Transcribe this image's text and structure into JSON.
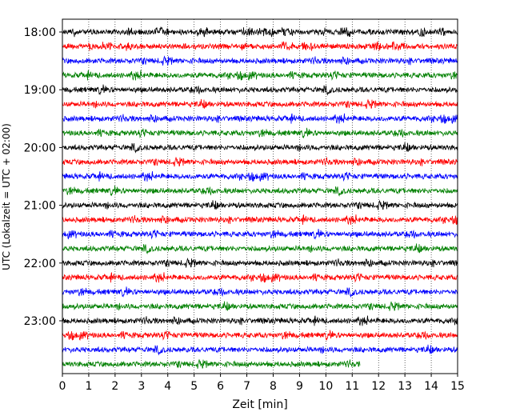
{
  "chart_data": {
    "type": "line",
    "title": "",
    "xlabel": "Zeit  [min]",
    "ylabel": "UTC (Lokalzeit = UTC + 02:00)",
    "xlim": [
      0,
      15
    ],
    "x_ticks": [
      "0",
      "1",
      "2",
      "3",
      "4",
      "5",
      "6",
      "7",
      "8",
      "9",
      "10",
      "11",
      "12",
      "13",
      "14",
      "15"
    ],
    "y_ticks": [
      "18:00",
      "19:00",
      "20:00",
      "21:00",
      "22:00",
      "23:00"
    ],
    "grid": "vertical-dotted",
    "colors": [
      "#000000",
      "#ff0000",
      "#0000ff",
      "#008000"
    ],
    "series": [
      {
        "start": "18:00",
        "end_min": 15,
        "color": "#000000"
      },
      {
        "start": "18:15",
        "end_min": 15,
        "color": "#ff0000"
      },
      {
        "start": "18:30",
        "end_min": 15,
        "color": "#0000ff"
      },
      {
        "start": "18:45",
        "end_min": 15,
        "color": "#008000"
      },
      {
        "start": "19:00",
        "end_min": 15,
        "color": "#000000"
      },
      {
        "start": "19:15",
        "end_min": 15,
        "color": "#ff0000"
      },
      {
        "start": "19:30",
        "end_min": 15,
        "color": "#0000ff"
      },
      {
        "start": "19:45",
        "end_min": 15,
        "color": "#008000"
      },
      {
        "start": "20:00",
        "end_min": 15,
        "color": "#000000"
      },
      {
        "start": "20:15",
        "end_min": 15,
        "color": "#ff0000"
      },
      {
        "start": "20:30",
        "end_min": 15,
        "color": "#0000ff"
      },
      {
        "start": "20:45",
        "end_min": 15,
        "color": "#008000"
      },
      {
        "start": "21:00",
        "end_min": 15,
        "color": "#000000"
      },
      {
        "start": "21:15",
        "end_min": 15,
        "color": "#ff0000"
      },
      {
        "start": "21:30",
        "end_min": 15,
        "color": "#0000ff"
      },
      {
        "start": "21:45",
        "end_min": 15,
        "color": "#008000"
      },
      {
        "start": "22:00",
        "end_min": 15,
        "color": "#000000"
      },
      {
        "start": "22:15",
        "end_min": 15,
        "color": "#ff0000"
      },
      {
        "start": "22:30",
        "end_min": 15,
        "color": "#0000ff"
      },
      {
        "start": "22:45",
        "end_min": 15,
        "color": "#008000"
      },
      {
        "start": "23:00",
        "end_min": 15,
        "color": "#000000"
      },
      {
        "start": "23:15",
        "end_min": 15,
        "color": "#ff0000"
      },
      {
        "start": "23:30",
        "end_min": 15,
        "color": "#0000ff"
      },
      {
        "start": "23:45",
        "end_min": 11.3,
        "color": "#008000"
      }
    ]
  }
}
